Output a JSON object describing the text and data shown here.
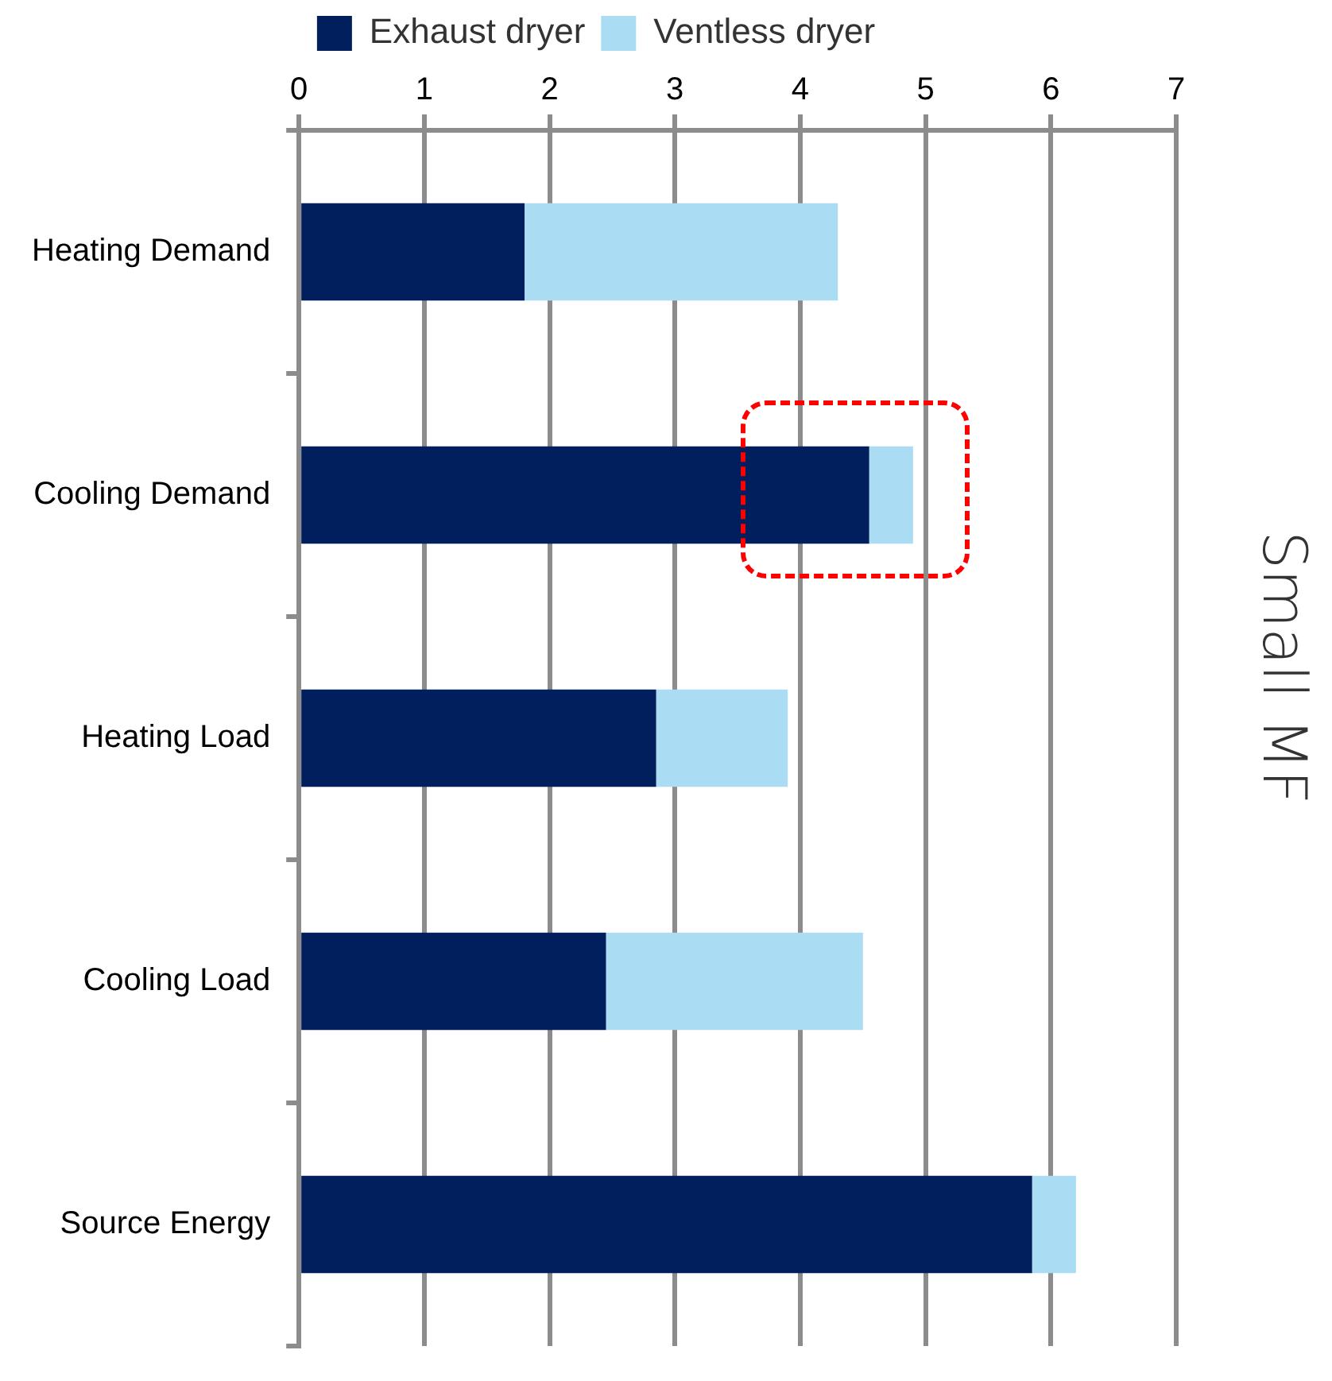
{
  "chart_data": {
    "type": "bar",
    "orientation": "horizontal",
    "stacked": true,
    "y2label": "Small MF",
    "categories": [
      "Heating Demand",
      "Cooling Demand",
      "Heating Load",
      "Cooling Load",
      "Source Energy"
    ],
    "series": [
      {
        "name": "Exhaust dryer",
        "color": "#001f5c",
        "values": [
          1.8,
          4.55,
          2.85,
          2.45,
          5.85
        ]
      },
      {
        "name": "Ventless dryer",
        "color": "#aadcf4",
        "values": [
          2.5,
          0.35,
          1.05,
          2.05,
          0.35
        ]
      }
    ],
    "xlim": [
      0,
      7
    ],
    "xticks": [
      0,
      1,
      2,
      3,
      4,
      5,
      6,
      7
    ],
    "grid": "x",
    "legend": "top"
  }
}
